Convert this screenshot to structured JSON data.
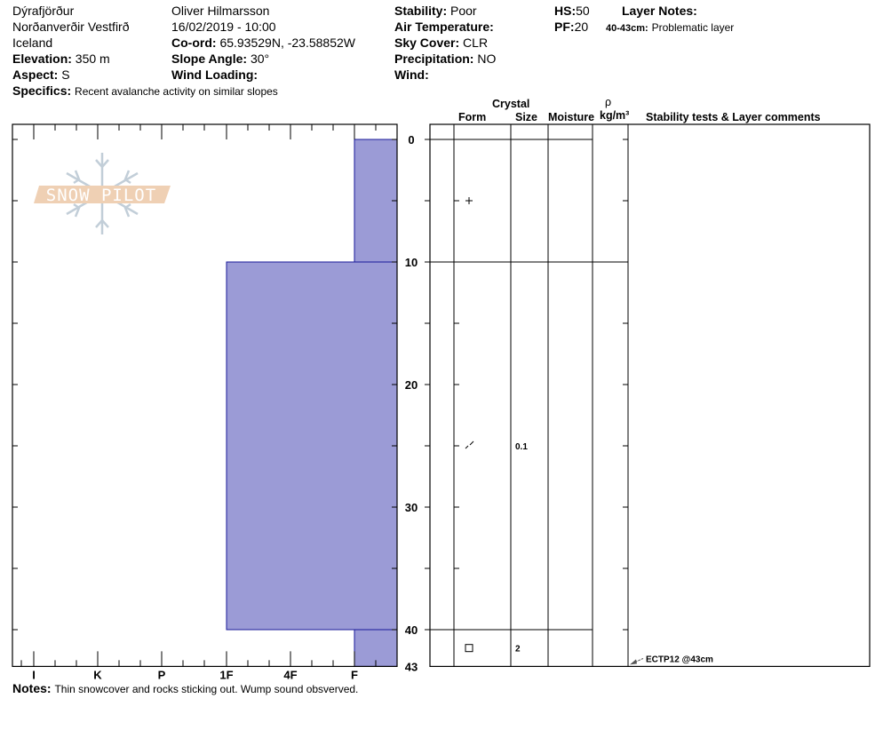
{
  "header": {
    "location": [
      "Dýrafjörður",
      "Norðanverðir Vestfirð",
      "Iceland"
    ],
    "observer": "Oliver Hilmarsson",
    "datetime": "16/02/2019 - 10:00",
    "elevation": {
      "label": "Elevation:",
      "value": "350 m"
    },
    "aspect": {
      "label": "Aspect:",
      "value": "S"
    },
    "specifics": {
      "label": "Specifics:",
      "value": "Recent avalanche activity on similar slopes"
    },
    "coord": {
      "label": "Co-ord:",
      "value": "65.93529N, -23.58852W"
    },
    "slope_angle": {
      "label": "Slope Angle:",
      "value": "30°"
    },
    "wind_loading": {
      "label": "Wind Loading:",
      "value": ""
    },
    "stability": {
      "label": "Stability:",
      "value": "Poor"
    },
    "air_temperature": {
      "label": "Air Temperature:",
      "value": ""
    },
    "sky_cover": {
      "label": "Sky Cover:",
      "value": "CLR"
    },
    "precipitation": {
      "label": "Precipitation:",
      "value": "NO"
    },
    "wind": {
      "label": "Wind:",
      "value": ""
    },
    "hs": {
      "label": "HS:",
      "value": "50"
    },
    "pf": {
      "label": "PF:",
      "value": "20"
    },
    "layer_notes": {
      "label": "Layer Notes:",
      "items": [
        {
          "range": "40-43cm:",
          "text": "Problematic layer"
        }
      ]
    }
  },
  "table_headers": {
    "crystal": "Crystal",
    "form": "Form",
    "size": "Size",
    "moisture": "Moisture",
    "rho": "ρ",
    "density_unit": "kg/m³",
    "comments": "Stability tests & Layer comments"
  },
  "notes": {
    "label": "Notes:",
    "value": "Thin snowcover and rocks sticking out. Wump sound obsverved."
  },
  "logo_text": "SNOW PILOT",
  "colors": {
    "layer_fill": "#9b9bd6",
    "layer_stroke": "#1a1a9a"
  },
  "chart_data": {
    "type": "bar",
    "orientation": "horizontal",
    "ylabel": "",
    "y_axis": "depth (cm), 0 at top",
    "ylim": [
      0,
      43
    ],
    "y_ticks": [
      "0",
      "10",
      "20",
      "30",
      "40",
      "43"
    ],
    "x_ticks": [
      "I",
      "K",
      "P",
      "1F",
      "4F",
      "F"
    ],
    "layers": [
      {
        "top": 0,
        "bottom": 10,
        "hardness": "F"
      },
      {
        "top": 10,
        "bottom": 40,
        "hardness": "1F"
      },
      {
        "top": 40,
        "bottom": 43,
        "hardness": "F"
      }
    ],
    "crystals": [
      {
        "depth": 5,
        "form": "precipitation-particles-icon",
        "size": ""
      },
      {
        "depth": 25,
        "form": "decomposing-fragments-icon",
        "size": "0.1"
      },
      {
        "depth": 41.5,
        "form": "faceted-crystals-icon",
        "size": "2"
      }
    ],
    "stability_tests": [
      {
        "depth": 43,
        "text": "ECTP12 @43cm"
      }
    ]
  }
}
